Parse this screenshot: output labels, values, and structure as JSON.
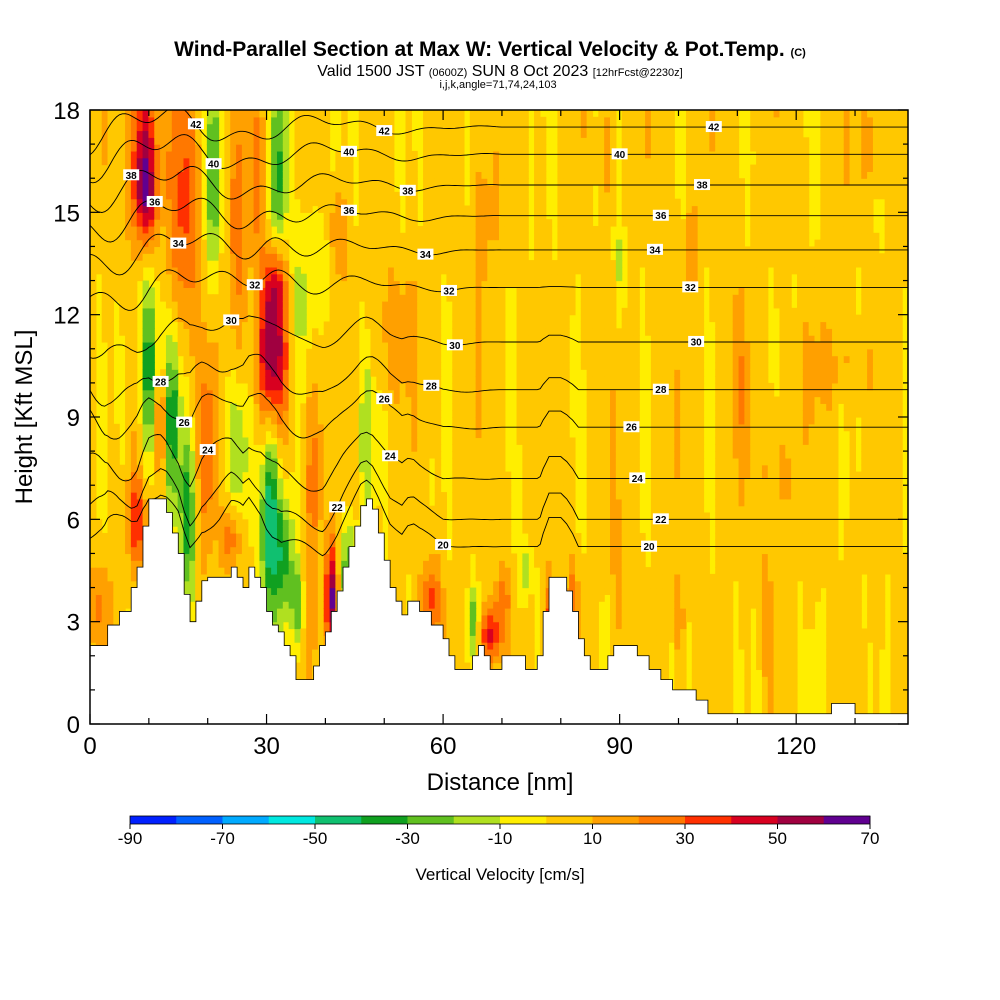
{
  "chart_data": {
    "type": "contour-cross-section",
    "title": "Wind-Parallel Section at Max W: Vertical Velocity & Pot.Temp.",
    "title_mark": "(C)",
    "subtitle": {
      "prefix": "Valid 1500 JST",
      "utc": "(0600Z)",
      "date": "SUN 8 Oct 2023",
      "forecast": "[12hrFcst@2230z]"
    },
    "subtitle2": "i,j,k,angle=71,74,24,103",
    "xlabel": "Distance [nm]",
    "ylabel": "Height [Kft MSL]",
    "xlim": [
      0,
      139
    ],
    "ylim": [
      0,
      18
    ],
    "x_ticks": [
      "0",
      "30",
      "60",
      "90",
      "120"
    ],
    "y_ticks": [
      "0",
      "3",
      "6",
      "9",
      "12",
      "15",
      "18"
    ],
    "colorbar": {
      "label": "Vertical Velocity [cm/s]",
      "tick_labels": [
        "-90",
        "-70",
        "-50",
        "-30",
        "-10",
        "10",
        "30",
        "50",
        "70"
      ],
      "colors": [
        "#0020ff",
        "#0060ff",
        "#00aaff",
        "#00e8e0",
        "#10c070",
        "#10a020",
        "#60c020",
        "#b0e020",
        "#ffee00",
        "#ffc800",
        "#ffa000",
        "#ff7800",
        "#ff3000",
        "#d80020",
        "#a00040",
        "#600090"
      ]
    },
    "theta_contours": [
      {
        "value": 20,
        "label": "20"
      },
      {
        "value": 22,
        "label": "22"
      },
      {
        "value": 24,
        "label": "24"
      },
      {
        "value": 26,
        "label": "26"
      },
      {
        "value": 28,
        "label": "28"
      },
      {
        "value": 30,
        "label": "30"
      },
      {
        "value": 32,
        "label": "32"
      },
      {
        "value": 34,
        "label": "34"
      },
      {
        "value": 36,
        "label": "36"
      },
      {
        "value": 38,
        "label": "38"
      },
      {
        "value": 40,
        "label": "40"
      },
      {
        "value": 42,
        "label": "42"
      }
    ],
    "terrain": [
      [
        0,
        2.3
      ],
      [
        2,
        2.3
      ],
      [
        3,
        2.9
      ],
      [
        5,
        3.3
      ],
      [
        7,
        4.0
      ],
      [
        8,
        4.6
      ],
      [
        9,
        5.8
      ],
      [
        10,
        6.6
      ],
      [
        11,
        6.6
      ],
      [
        12,
        6.6
      ],
      [
        13,
        6.2
      ],
      [
        14,
        5.6
      ],
      [
        15,
        5.0
      ],
      [
        16,
        3.8
      ],
      [
        17,
        3.0
      ],
      [
        18,
        3.6
      ],
      [
        19,
        4.2
      ],
      [
        20,
        4.3
      ],
      [
        22,
        4.3
      ],
      [
        24,
        4.6
      ],
      [
        25,
        4.3
      ],
      [
        26,
        4.0
      ],
      [
        27,
        4.6
      ],
      [
        28,
        4.3
      ],
      [
        29,
        4.0
      ],
      [
        30,
        3.3
      ],
      [
        31,
        2.9
      ],
      [
        32,
        2.7
      ],
      [
        33,
        2.3
      ],
      [
        34,
        2.0
      ],
      [
        35,
        1.3
      ],
      [
        37,
        1.3
      ],
      [
        38,
        1.7
      ],
      [
        39,
        2.3
      ],
      [
        40,
        2.7
      ],
      [
        41,
        3.3
      ],
      [
        42,
        3.9
      ],
      [
        43,
        4.6
      ],
      [
        44,
        5.2
      ],
      [
        45,
        5.8
      ],
      [
        46,
        6.4
      ],
      [
        47,
        6.6
      ],
      [
        48,
        6.3
      ],
      [
        49,
        5.6
      ],
      [
        50,
        4.8
      ],
      [
        51,
        4.0
      ],
      [
        52,
        3.6
      ],
      [
        53,
        3.2
      ],
      [
        54,
        3.6
      ],
      [
        55,
        3.6
      ],
      [
        56,
        3.3
      ],
      [
        58,
        2.9
      ],
      [
        60,
        2.5
      ],
      [
        61,
        2.0
      ],
      [
        62,
        1.6
      ],
      [
        64,
        1.6
      ],
      [
        65,
        2.0
      ],
      [
        66,
        2.3
      ],
      [
        67,
        2.0
      ],
      [
        68,
        1.6
      ],
      [
        70,
        2.0
      ],
      [
        72,
        2.0
      ],
      [
        73,
        2.0
      ],
      [
        74,
        1.6
      ],
      [
        75,
        1.6
      ],
      [
        76,
        2.0
      ],
      [
        77,
        3.3
      ],
      [
        78,
        4.3
      ],
      [
        80,
        4.3
      ],
      [
        81,
        3.9
      ],
      [
        82,
        3.3
      ],
      [
        83,
        2.5
      ],
      [
        84,
        2.0
      ],
      [
        85,
        1.6
      ],
      [
        87,
        1.6
      ],
      [
        88,
        2.0
      ],
      [
        89,
        2.3
      ],
      [
        91,
        2.3
      ],
      [
        93,
        2.0
      ],
      [
        95,
        1.6
      ],
      [
        97,
        1.3
      ],
      [
        99,
        1.0
      ],
      [
        101,
        1.0
      ],
      [
        103,
        0.7
      ],
      [
        105,
        0.3
      ],
      [
        124,
        0.3
      ],
      [
        126,
        0.6
      ],
      [
        129,
        0.6
      ],
      [
        130,
        0.3
      ],
      [
        139,
        0.3
      ]
    ],
    "vertical_velocity_cells": [
      {
        "x": 9,
        "z": 17.0,
        "rx": 2.2,
        "rz": 2.4,
        "w": 45
      },
      {
        "x": 9.5,
        "z": 15.4,
        "rx": 2.0,
        "rz": 1.5,
        "w": 35
      },
      {
        "x": 16,
        "z": 15.2,
        "rx": 2.6,
        "rz": 3.8,
        "w": 30
      },
      {
        "x": 21,
        "z": 16.0,
        "rx": 1.3,
        "rz": 3.0,
        "w": -35
      },
      {
        "x": 25,
        "z": 14.0,
        "rx": 2.2,
        "rz": 4.0,
        "w": 18
      },
      {
        "x": 28.5,
        "z": 16.2,
        "rx": 1.4,
        "rz": 2.5,
        "w": 20
      },
      {
        "x": 31,
        "z": 10.8,
        "rx": 2.4,
        "rz": 2.1,
        "w": 58
      },
      {
        "x": 31.5,
        "z": 13.0,
        "rx": 1.8,
        "rz": 1.3,
        "w": 38
      },
      {
        "x": 32,
        "z": 16.0,
        "rx": 1.4,
        "rz": 3.2,
        "w": -35
      },
      {
        "x": 36,
        "z": 12.5,
        "rx": 1.6,
        "rz": 2.8,
        "w": -18
      },
      {
        "x": 40,
        "z": 13.5,
        "rx": 1.5,
        "rz": 2.5,
        "w": -12
      },
      {
        "x": 42,
        "z": 14.5,
        "rx": 1.5,
        "rz": 1.5,
        "w": 22
      },
      {
        "x": 10,
        "z": 10.5,
        "rx": 1.3,
        "rz": 2.8,
        "w": -45
      },
      {
        "x": 14,
        "z": 9.0,
        "rx": 1.2,
        "rz": 2.6,
        "w": -40
      },
      {
        "x": 12,
        "z": 8.8,
        "rx": 0.8,
        "rz": 1.5,
        "w": 35
      },
      {
        "x": 16.5,
        "z": 6.0,
        "rx": 1.4,
        "rz": 2.5,
        "w": -38
      },
      {
        "x": 20,
        "z": 8.0,
        "rx": 1.5,
        "rz": 3.2,
        "w": 22
      },
      {
        "x": 25,
        "z": 8.0,
        "rx": 2.0,
        "rz": 2.2,
        "w": -20
      },
      {
        "x": 30.5,
        "z": 6.0,
        "rx": 1.5,
        "rz": 3.0,
        "w": -55
      },
      {
        "x": 33,
        "z": 5.0,
        "rx": 1.5,
        "rz": 1.8,
        "w": -38
      },
      {
        "x": 38,
        "z": 7.5,
        "rx": 1.5,
        "rz": 3.5,
        "w": 25
      },
      {
        "x": 47,
        "z": 8.5,
        "rx": 1.0,
        "rz": 3.0,
        "w": -20
      },
      {
        "x": 8,
        "z": 6.0,
        "rx": 1.6,
        "rz": 1.3,
        "w": 35
      },
      {
        "x": 2,
        "z": 3.5,
        "rx": 1.5,
        "rz": 1.3,
        "w": 20
      },
      {
        "x": 24,
        "z": 5.5,
        "rx": 1.6,
        "rz": 1.0,
        "w": 28
      },
      {
        "x": 41,
        "z": 3.7,
        "rx": 1.0,
        "rz": 1.5,
        "w": 60
      },
      {
        "x": 35,
        "z": 3.5,
        "rx": 1.0,
        "rz": 1.2,
        "w": -30
      },
      {
        "x": 44,
        "z": 4.5,
        "rx": 1.2,
        "rz": 1.5,
        "w": -35
      },
      {
        "x": 58,
        "z": 3.7,
        "rx": 1.5,
        "rz": 1.1,
        "w": 32
      },
      {
        "x": 65,
        "z": 3.0,
        "rx": 1.0,
        "rz": 1.0,
        "w": -25
      },
      {
        "x": 68,
        "z": 2.6,
        "rx": 1.8,
        "rz": 0.8,
        "w": 38
      },
      {
        "x": 70,
        "z": 3.7,
        "rx": 1.5,
        "rz": 1.0,
        "w": 20
      },
      {
        "x": 74,
        "z": 4.5,
        "rx": 1.0,
        "rz": 1.0,
        "w": -20
      },
      {
        "x": 78,
        "z": 3.0,
        "rx": 1.0,
        "rz": 1.2,
        "w": 28
      },
      {
        "x": 82,
        "z": 3.5,
        "rx": 1.0,
        "rz": 1.3,
        "w": 22
      },
      {
        "x": 90,
        "z": 4.5,
        "rx": 1.0,
        "rz": 2.0,
        "w": 16
      },
      {
        "x": 52,
        "z": 11.5,
        "rx": 4.0,
        "rz": 1.8,
        "w": 14
      },
      {
        "x": 67,
        "z": 15.0,
        "rx": 2.0,
        "rz": 2.5,
        "w": 14
      },
      {
        "x": 88,
        "z": 16.8,
        "rx": 1.2,
        "rz": 1.5,
        "w": 14
      },
      {
        "x": 90,
        "z": 13.5,
        "rx": 1.0,
        "rz": 1.5,
        "w": -12
      },
      {
        "x": 102,
        "z": 14.0,
        "rx": 1.0,
        "rz": 1.5,
        "w": 13
      },
      {
        "x": 110,
        "z": 10.0,
        "rx": 2.0,
        "rz": 2.5,
        "w": 13
      },
      {
        "x": 117,
        "z": 7.5,
        "rx": 2.5,
        "rz": 2.0,
        "w": 12
      },
      {
        "x": 133,
        "z": 17.0,
        "rx": 3.0,
        "rz": 1.2,
        "w": 13
      },
      {
        "x": 126,
        "z": 10.5,
        "rx": 5.0,
        "rz": 1.2,
        "w": 12
      },
      {
        "x": 123,
        "z": 1.3,
        "rx": 1.0,
        "rz": 1.3,
        "w": -12
      },
      {
        "x": 115,
        "z": 3.0,
        "rx": 1.0,
        "rz": 1.8,
        "w": 12
      },
      {
        "x": 100,
        "z": 3.0,
        "rx": 1.0,
        "rz": 1.5,
        "w": 13
      }
    ],
    "background_w": 3
  }
}
